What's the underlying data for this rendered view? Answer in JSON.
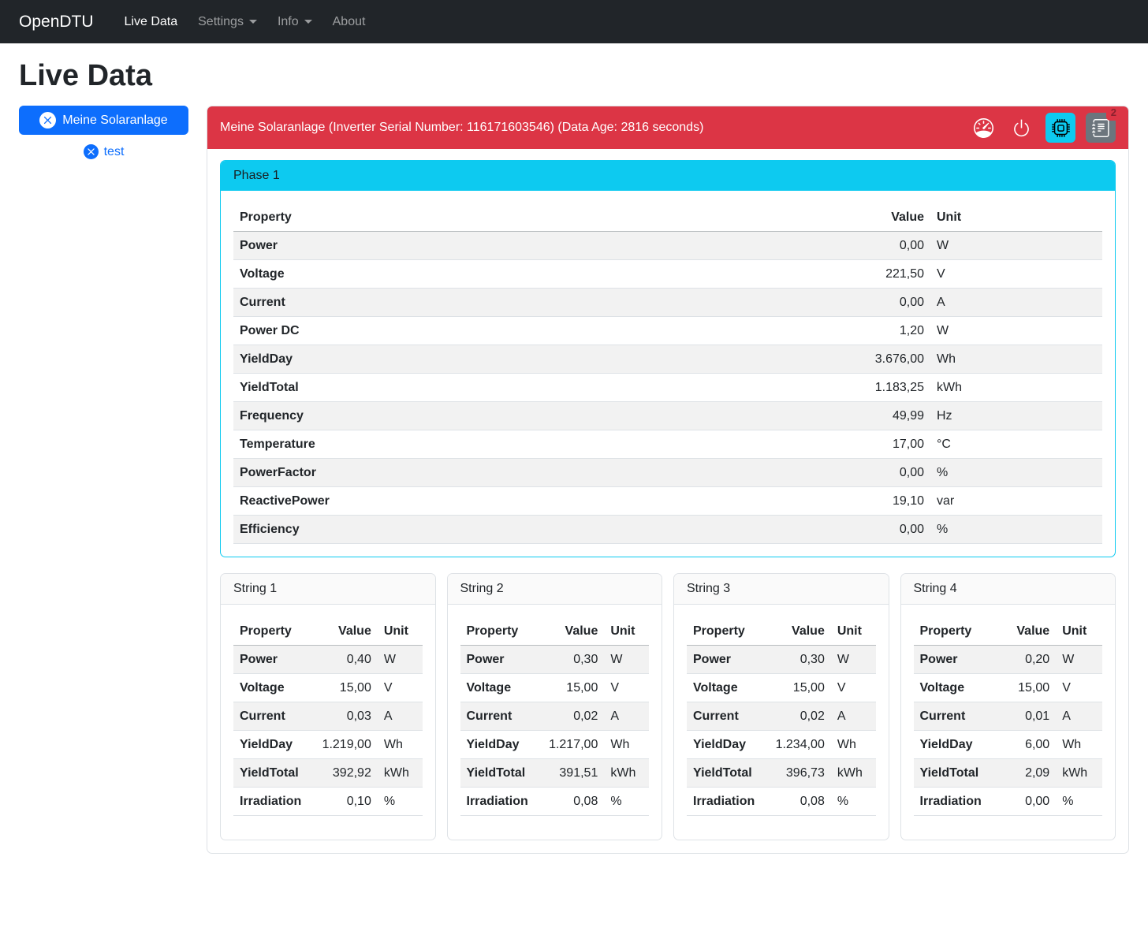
{
  "navbar": {
    "brand": "OpenDTU",
    "items": [
      {
        "label": "Live Data",
        "active": true,
        "dropdown": false
      },
      {
        "label": "Settings",
        "active": false,
        "dropdown": true
      },
      {
        "label": "Info",
        "active": false,
        "dropdown": true
      },
      {
        "label": "About",
        "active": false,
        "dropdown": false
      }
    ]
  },
  "page": {
    "title": "Live Data"
  },
  "sidebar": {
    "inverter_button": {
      "label": "Meine Solaranlage",
      "icon": "x-circle-icon"
    },
    "test_link": {
      "label": "test",
      "icon": "x-circle-icon"
    }
  },
  "inverter": {
    "header": "Meine Solaranlage (Inverter Serial Number: 116171603546) (Data Age: 2816 seconds)",
    "event_badge_count": "2",
    "icons": [
      "speedometer-icon",
      "power-icon",
      "cpu-icon",
      "journal-text-icon"
    ]
  },
  "phase": {
    "title": "Phase 1",
    "columns": [
      "Property",
      "Value",
      "Unit"
    ],
    "rows": [
      [
        "Power",
        "0,00",
        "W"
      ],
      [
        "Voltage",
        "221,50",
        "V"
      ],
      [
        "Current",
        "0,00",
        "A"
      ],
      [
        "Power DC",
        "1,20",
        "W"
      ],
      [
        "YieldDay",
        "3.676,00",
        "Wh"
      ],
      [
        "YieldTotal",
        "1.183,25",
        "kWh"
      ],
      [
        "Frequency",
        "49,99",
        "Hz"
      ],
      [
        "Temperature",
        "17,00",
        "°C"
      ],
      [
        "PowerFactor",
        "0,00",
        "%"
      ],
      [
        "ReactivePower",
        "19,10",
        "var"
      ],
      [
        "Efficiency",
        "0,00",
        "%"
      ]
    ]
  },
  "strings": [
    {
      "title": "String 1",
      "columns": [
        "Property",
        "Value",
        "Unit"
      ],
      "rows": [
        [
          "Power",
          "0,40",
          "W"
        ],
        [
          "Voltage",
          "15,00",
          "V"
        ],
        [
          "Current",
          "0,03",
          "A"
        ],
        [
          "YieldDay",
          "1.219,00",
          "Wh"
        ],
        [
          "YieldTotal",
          "392,92",
          "kWh"
        ],
        [
          "Irradiation",
          "0,10",
          "%"
        ]
      ]
    },
    {
      "title": "String 2",
      "columns": [
        "Property",
        "Value",
        "Unit"
      ],
      "rows": [
        [
          "Power",
          "0,30",
          "W"
        ],
        [
          "Voltage",
          "15,00",
          "V"
        ],
        [
          "Current",
          "0,02",
          "A"
        ],
        [
          "YieldDay",
          "1.217,00",
          "Wh"
        ],
        [
          "YieldTotal",
          "391,51",
          "kWh"
        ],
        [
          "Irradiation",
          "0,08",
          "%"
        ]
      ]
    },
    {
      "title": "String 3",
      "columns": [
        "Property",
        "Value",
        "Unit"
      ],
      "rows": [
        [
          "Power",
          "0,30",
          "W"
        ],
        [
          "Voltage",
          "15,00",
          "V"
        ],
        [
          "Current",
          "0,02",
          "A"
        ],
        [
          "YieldDay",
          "1.234,00",
          "Wh"
        ],
        [
          "YieldTotal",
          "396,73",
          "kWh"
        ],
        [
          "Irradiation",
          "0,08",
          "%"
        ]
      ]
    },
    {
      "title": "String 4",
      "columns": [
        "Property",
        "Value",
        "Unit"
      ],
      "rows": [
        [
          "Power",
          "0,20",
          "W"
        ],
        [
          "Voltage",
          "15,00",
          "V"
        ],
        [
          "Current",
          "0,01",
          "A"
        ],
        [
          "YieldDay",
          "6,00",
          "Wh"
        ],
        [
          "YieldTotal",
          "2,09",
          "kWh"
        ],
        [
          "Irradiation",
          "0,00",
          "%"
        ]
      ]
    }
  ],
  "colors": {
    "navbar_bg": "#212529",
    "primary": "#0d6efd",
    "danger": "#dc3545",
    "info": "#0dcaf0",
    "secondary": "#6c757d",
    "stripe": "#f2f2f2",
    "border": "#dee2e6"
  }
}
